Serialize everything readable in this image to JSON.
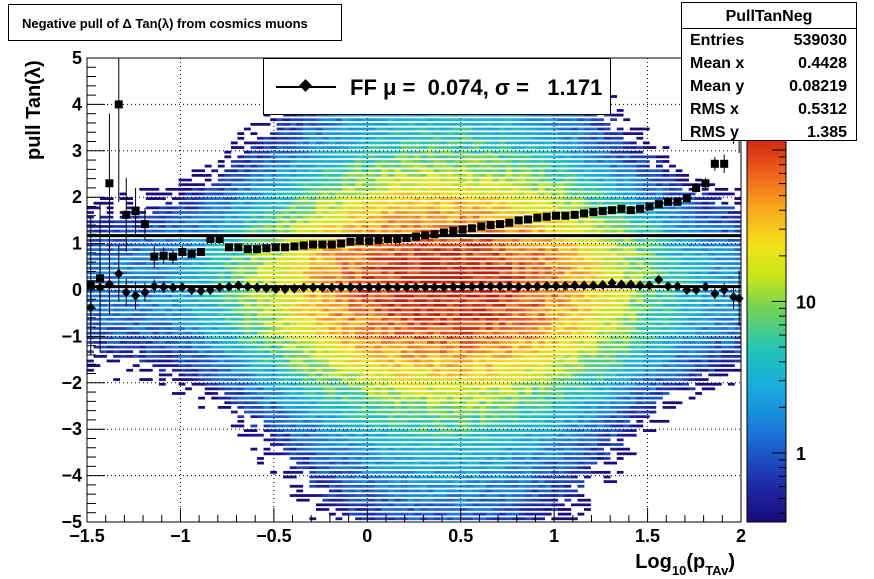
{
  "chart_data": {
    "type": "heatmap",
    "title": "Negative pull of Δ Tan(λ) from cosmics muons",
    "xlabel": "Log",
    "xlabel_sub1": "10",
    "xlabel_mid": "(p",
    "xlabel_sub2": "TAv",
    "xlabel_end": ")",
    "ylabel": "pull Tan(λ)",
    "xlim": [
      -1.5,
      2.0
    ],
    "ylim": [
      -5,
      5
    ],
    "x_ticks": [
      "−1.5",
      "−1",
      "−0.5",
      "0",
      "0.5",
      "1",
      "1.5",
      "2"
    ],
    "x_tick_values": [
      -1.5,
      -1.0,
      -0.5,
      0.0,
      0.5,
      1.0,
      1.5,
      2.0
    ],
    "y_ticks": [
      "−5",
      "−4",
      "−3",
      "−2",
      "−1",
      "0",
      "1",
      "2",
      "3",
      "4",
      "5"
    ],
    "y_tick_values": [
      -5,
      -4,
      -3,
      -2,
      -1,
      0,
      1,
      2,
      3,
      4,
      5
    ],
    "grid": true,
    "colorbar": {
      "scale": "log",
      "labels": [
        "1",
        "10"
      ],
      "label_values": [
        1,
        10
      ],
      "range": [
        0.35,
        120
      ]
    },
    "stats": {
      "name": "PullTanNeg",
      "rows": [
        {
          "key": "Entries",
          "value": "539030"
        },
        {
          "key": "Mean x",
          "value": "0.4428"
        },
        {
          "key": "Mean y",
          "value": "0.08219"
        },
        {
          "key": "RMS x",
          "value": "0.5312"
        },
        {
          "key": "RMS y",
          "value": "1.385"
        }
      ]
    },
    "legend": {
      "text": "FF μ =  0.074, σ =   1.171",
      "placement": "top-center"
    },
    "fit_lines": [
      {
        "y": 0.074,
        "xlim": [
          -1.5,
          2.0
        ]
      },
      {
        "y": 1.171,
        "xlim": [
          -1.5,
          2.0
        ]
      }
    ],
    "series": [
      {
        "marker": "diamond",
        "x": [
          -1.48,
          -1.43,
          -1.38,
          -1.33,
          -1.29,
          -1.24,
          -1.19,
          -1.14,
          -1.09,
          -1.04,
          -0.99,
          -0.94,
          -0.89,
          -0.84,
          -0.79,
          -0.74,
          -0.69,
          -0.64,
          -0.59,
          -0.54,
          -0.49,
          -0.44,
          -0.39,
          -0.34,
          -0.29,
          -0.24,
          -0.19,
          -0.14,
          -0.09,
          -0.04,
          0.01,
          0.06,
          0.11,
          0.16,
          0.21,
          0.26,
          0.31,
          0.36,
          0.41,
          0.46,
          0.51,
          0.56,
          0.61,
          0.66,
          0.71,
          0.76,
          0.81,
          0.86,
          0.91,
          0.96,
          1.01,
          1.06,
          1.11,
          1.16,
          1.21,
          1.26,
          1.31,
          1.36,
          1.41,
          1.46,
          1.51,
          1.56,
          1.61,
          1.66,
          1.71,
          1.76,
          1.81,
          1.86,
          1.91,
          1.96,
          1.99
        ],
        "y": [
          -0.38,
          0.05,
          0.12,
          0.35,
          -0.05,
          -0.12,
          -0.05,
          0.08,
          0.06,
          0.05,
          0.06,
          0.0,
          -0.02,
          0.0,
          0.05,
          0.07,
          0.1,
          0.07,
          0.05,
          0.04,
          0.02,
          0.02,
          0.03,
          0.05,
          0.05,
          0.05,
          0.05,
          0.06,
          0.06,
          0.05,
          0.06,
          0.06,
          0.06,
          0.06,
          0.06,
          0.06,
          0.06,
          0.06,
          0.06,
          0.07,
          0.07,
          0.07,
          0.08,
          0.08,
          0.08,
          0.08,
          0.07,
          0.08,
          0.08,
          0.09,
          0.09,
          0.09,
          0.1,
          0.1,
          0.1,
          0.11,
          0.15,
          0.12,
          0.12,
          0.1,
          0.1,
          0.22,
          0.08,
          0.08,
          0.0,
          0.0,
          0.07,
          -0.08,
          0.0,
          -0.15,
          -0.18
        ],
        "yerr": [
          0.55,
          0.6,
          0.65,
          0.6,
          0.3,
          0.3,
          0.2,
          0.15,
          0.12,
          0.1,
          0.08,
          0.07,
          0.06,
          0.06,
          0.05,
          0.05,
          0.05,
          0.04,
          0.04,
          0.03,
          0.03,
          0.03,
          0.03,
          0.02,
          0.02,
          0.02,
          0.02,
          0.02,
          0.02,
          0.02,
          0.02,
          0.02,
          0.02,
          0.02,
          0.02,
          0.02,
          0.02,
          0.02,
          0.02,
          0.02,
          0.02,
          0.02,
          0.02,
          0.02,
          0.02,
          0.02,
          0.02,
          0.02,
          0.02,
          0.02,
          0.02,
          0.02,
          0.02,
          0.03,
          0.03,
          0.03,
          0.03,
          0.03,
          0.04,
          0.04,
          0.04,
          0.05,
          0.05,
          0.06,
          0.07,
          0.08,
          0.1,
          0.12,
          0.15,
          0.25,
          0.6
        ]
      },
      {
        "marker": "square",
        "x": [
          -1.48,
          -1.43,
          -1.38,
          -1.33,
          -1.29,
          -1.24,
          -1.19,
          -1.14,
          -1.09,
          -1.04,
          -0.99,
          -0.94,
          -0.89,
          -0.84,
          -0.79,
          -0.74,
          -0.69,
          -0.64,
          -0.59,
          -0.54,
          -0.49,
          -0.44,
          -0.39,
          -0.34,
          -0.29,
          -0.24,
          -0.19,
          -0.14,
          -0.09,
          -0.04,
          0.01,
          0.06,
          0.11,
          0.16,
          0.21,
          0.26,
          0.31,
          0.36,
          0.41,
          0.46,
          0.51,
          0.56,
          0.61,
          0.66,
          0.71,
          0.76,
          0.81,
          0.86,
          0.91,
          0.96,
          1.01,
          1.06,
          1.11,
          1.16,
          1.21,
          1.26,
          1.31,
          1.36,
          1.41,
          1.46,
          1.51,
          1.56,
          1.61,
          1.66,
          1.71,
          1.76,
          1.81,
          1.86,
          1.91,
          1.96,
          1.99
        ],
        "y": [
          0.1,
          0.25,
          2.3,
          4.0,
          1.62,
          1.7,
          1.42,
          0.72,
          0.74,
          0.72,
          0.82,
          0.78,
          0.82,
          1.1,
          1.1,
          0.92,
          0.92,
          0.88,
          0.88,
          0.9,
          0.92,
          0.92,
          0.94,
          0.96,
          0.98,
          0.98,
          0.98,
          1.0,
          1.04,
          1.06,
          1.05,
          1.08,
          1.1,
          1.1,
          1.12,
          1.15,
          1.18,
          1.2,
          1.24,
          1.28,
          1.3,
          1.33,
          1.37,
          1.4,
          1.42,
          1.45,
          1.5,
          1.52,
          1.56,
          1.58,
          1.6,
          1.6,
          1.62,
          1.65,
          1.68,
          1.7,
          1.72,
          1.75,
          1.72,
          1.75,
          1.8,
          1.85,
          1.9,
          1.9,
          1.98,
          2.2,
          2.3,
          2.72,
          2.72,
          3.5,
          3.85
        ],
        "yerr": [
          1.5,
          1.6,
          1.5,
          2.1,
          0.8,
          0.5,
          0.35,
          0.22,
          0.18,
          0.15,
          0.12,
          0.1,
          0.08,
          0.07,
          0.06,
          0.06,
          0.05,
          0.05,
          0.05,
          0.04,
          0.04,
          0.04,
          0.03,
          0.03,
          0.03,
          0.03,
          0.03,
          0.03,
          0.03,
          0.03,
          0.03,
          0.03,
          0.03,
          0.03,
          0.03,
          0.03,
          0.03,
          0.03,
          0.03,
          0.03,
          0.03,
          0.03,
          0.03,
          0.03,
          0.03,
          0.03,
          0.03,
          0.03,
          0.03,
          0.03,
          0.03,
          0.03,
          0.03,
          0.04,
          0.04,
          0.04,
          0.04,
          0.05,
          0.05,
          0.05,
          0.06,
          0.06,
          0.07,
          0.08,
          0.09,
          0.1,
          0.12,
          0.15,
          0.2,
          0.35,
          0.9
        ]
      }
    ]
  }
}
